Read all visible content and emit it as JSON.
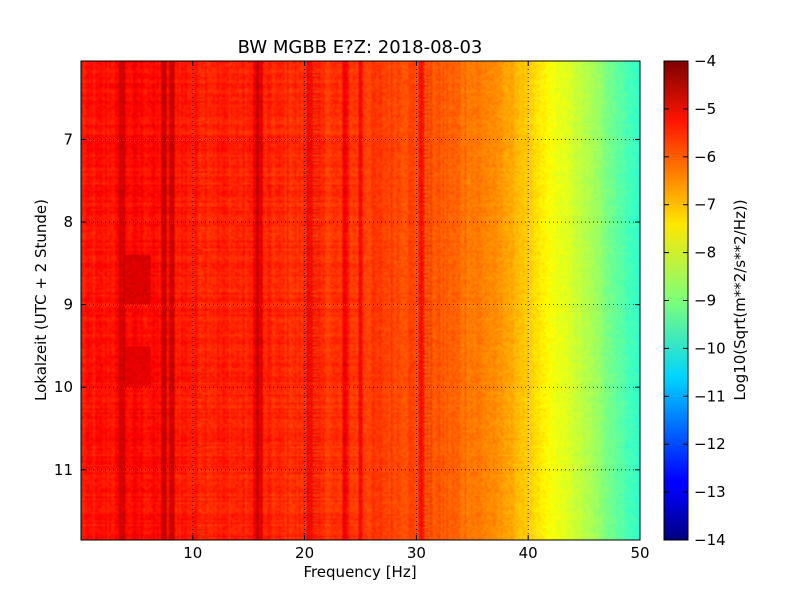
{
  "chart_data": {
    "type": "heatmap",
    "title": "BW MGBB E?Z: 2018-08-03",
    "xlabel": "Frequency [Hz]",
    "ylabel": "Lokalzeit (UTC + 2 Stunde)",
    "xlim": [
      0,
      50
    ],
    "ylim": [
      6.05,
      11.85
    ],
    "y_inverted": true,
    "x_ticks": [
      10,
      20,
      30,
      40,
      50
    ],
    "x_tick_labels": [
      "10",
      "20",
      "30",
      "40",
      "50"
    ],
    "y_ticks": [
      7,
      8,
      9,
      10,
      11
    ],
    "y_tick_labels": [
      "7",
      "8",
      "9",
      "10",
      "11"
    ],
    "grid": true,
    "colormap": "jet",
    "colorbar": {
      "label": "Log10(Sqrt(m**2/s**2/Hz))",
      "range": [
        -14,
        -4
      ],
      "ticks": [
        -4,
        -5,
        -6,
        -7,
        -8,
        -9,
        -10,
        -11,
        -12,
        -13,
        -14
      ],
      "tick_labels": [
        "−4",
        "−5",
        "−6",
        "−7",
        "−8",
        "−9",
        "−10",
        "−11",
        "−12",
        "−13",
        "−14"
      ]
    },
    "frequency_profile": {
      "frequency_hz": [
        0,
        5,
        10,
        15,
        20,
        25,
        30,
        33,
        36,
        38,
        40,
        42,
        44,
        46,
        48,
        50
      ],
      "log_value": [
        -5.5,
        -5.3,
        -5.5,
        -5.6,
        -5.7,
        -5.8,
        -5.95,
        -6.2,
        -6.5,
        -6.8,
        -7.3,
        -7.8,
        -8.2,
        -8.7,
        -9.3,
        -9.8
      ]
    },
    "spectral_lines_hz": [
      3.7,
      7.4,
      8.1,
      15.6,
      16.0,
      20.4,
      23.6,
      25.0,
      30.4
    ],
    "high_energy_regions": [
      {
        "f_min": 3.8,
        "f_max": 6.2,
        "t_min": 8.4,
        "t_max": 9.0,
        "log_value": -4.9
      },
      {
        "f_min": 3.8,
        "f_max": 6.2,
        "t_min": 9.5,
        "t_max": 10.0,
        "log_value": -5.0
      }
    ]
  }
}
